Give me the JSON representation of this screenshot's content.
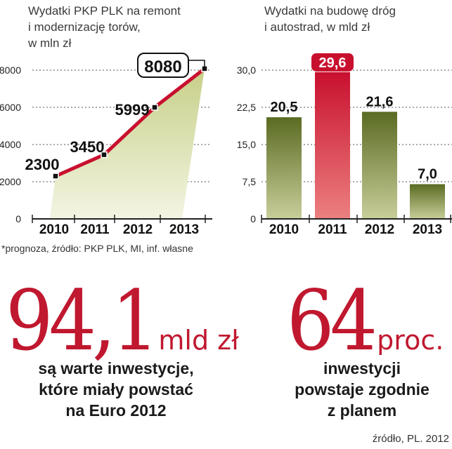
{
  "chart_data": [
    {
      "type": "line",
      "title": "Wydatki PKP PLK na remont i modernizację torów, w mln zł",
      "title_lines": [
        "Wydatki PKP PLK na remont",
        "i modernizację torów,",
        "w mln zł"
      ],
      "categories": [
        "2010",
        "2011",
        "2012",
        "2013"
      ],
      "values": [
        2300,
        3450,
        5999,
        8080
      ],
      "value_labels": [
        "2300",
        "3450",
        "5999",
        "8080"
      ],
      "highlight_label": "8080",
      "ylim": [
        0,
        8000
      ],
      "yticks": [
        "0",
        "2000",
        "4000",
        "6000",
        "8000"
      ],
      "ytick_values": [
        0,
        2000,
        4000,
        6000,
        8000
      ],
      "grid": true,
      "colors": {
        "line": "#c8102e",
        "area": "#c7cf88",
        "area_light": "#f3f5e2"
      }
    },
    {
      "type": "bar",
      "title": "Wydatki na budowę dróg i autostrad, w mld zł",
      "title_lines": [
        "Wydatki na budowę dróg",
        "i autostrad, w mld zł"
      ],
      "categories": [
        "2010",
        "2011",
        "2012",
        "2013"
      ],
      "values": [
        20.5,
        29.6,
        21.6,
        7.0
      ],
      "value_labels": [
        "20,5",
        "29,6",
        "21,6",
        "7,0"
      ],
      "highlight_index": 1,
      "ylim": [
        0,
        30
      ],
      "yticks": [
        "0",
        "7,5",
        "15,0",
        "22,5",
        "30,0"
      ],
      "ytick_values": [
        0,
        7.5,
        15,
        22.5,
        30
      ],
      "grid": true,
      "colors": {
        "bar": "#5a6b22",
        "bar_light": "#c9ce9a",
        "highlight": "#c8102e",
        "highlight_light": "#ec8080"
      }
    }
  ],
  "footnote": "*prognoza, źródło: PKP PLK, MI, inf. własne",
  "stat_left": {
    "value": "94,1",
    "unit": "mld zł",
    "lines": [
      "są warte inwestycje,",
      "które miały powstać",
      "na Euro 2012"
    ]
  },
  "stat_right": {
    "value": "64",
    "unit": "proc.",
    "lines": [
      "inwestycji",
      "powstaje zgodnie",
      "z planem"
    ]
  },
  "source": "źródło, PL. 2012"
}
